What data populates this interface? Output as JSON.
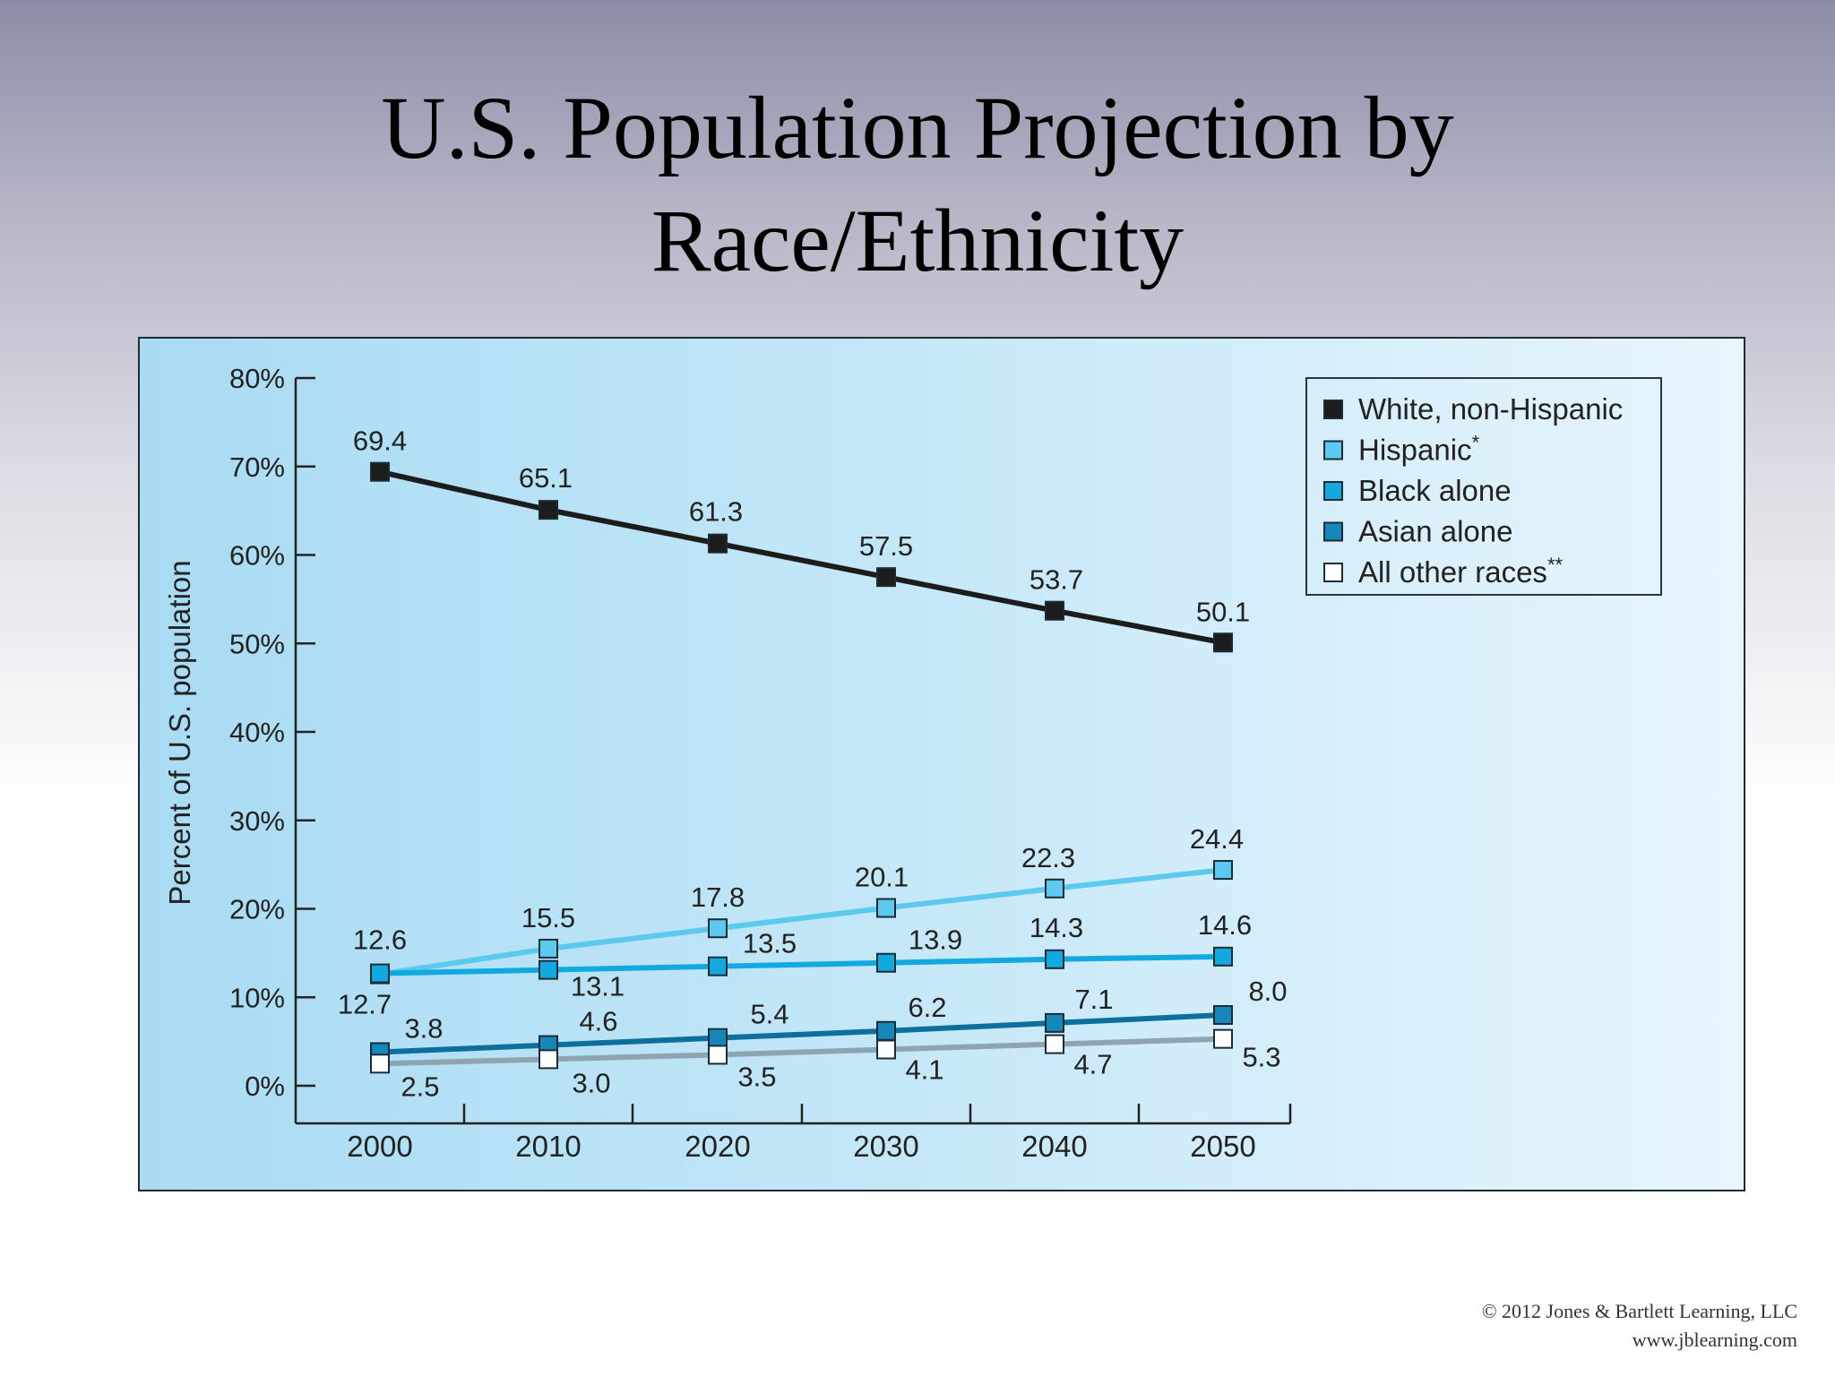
{
  "slide": {
    "title_line1": "U.S. Population Projection by",
    "title_line2": "Race/Ethnicity",
    "copyright_line1": "© 2012 Jones & Bartlett Learning, LLC",
    "copyright_line2": "www.jblearning.com"
  },
  "chart_data": {
    "type": "line",
    "title": "",
    "xlabel": "",
    "ylabel": "Percent of U.S. population",
    "x": [
      "2000",
      "2010",
      "2020",
      "2030",
      "2040",
      "2050"
    ],
    "ylim": [
      0,
      80
    ],
    "yticks": [
      "0%",
      "10%",
      "20%",
      "30%",
      "40%",
      "50%",
      "60%",
      "70%",
      "80%"
    ],
    "grid": false,
    "legend_position": "top-right",
    "series": [
      {
        "name": "White, non-Hispanic",
        "marker": "",
        "values": [
          69.4,
          65.1,
          61.3,
          57.5,
          53.7,
          50.1
        ],
        "labels": [
          "69.4",
          "65.1",
          "61.3",
          "57.5",
          "53.7",
          "50.1"
        ],
        "line_color": "#1c1c1c",
        "marker_color": "#1c1c1c"
      },
      {
        "name": "Hispanic",
        "marker": "*",
        "values": [
          12.6,
          15.5,
          17.8,
          20.1,
          22.3,
          24.4
        ],
        "labels": [
          "12.6",
          "15.5",
          "17.8",
          "20.1",
          "22.3",
          "24.4"
        ],
        "line_color": "#5ccaef",
        "marker_color": "#5ccaef"
      },
      {
        "name": "Black alone",
        "marker": "",
        "values": [
          12.7,
          13.1,
          13.5,
          13.9,
          14.3,
          14.6
        ],
        "labels": [
          "12.7",
          "13.1",
          "13.5",
          "13.9",
          "14.3",
          "14.6"
        ],
        "line_color": "#12a8e0",
        "marker_color": "#12a8e0"
      },
      {
        "name": "Asian alone",
        "marker": "",
        "values": [
          3.8,
          4.6,
          5.4,
          6.2,
          7.1,
          8.0
        ],
        "labels": [
          "3.8",
          "4.6",
          "5.4",
          "6.2",
          "7.1",
          "8.0"
        ],
        "line_color": "#0d6f9c",
        "marker_color": "#1587b8"
      },
      {
        "name": "All other races",
        "marker": "**",
        "values": [
          2.5,
          3.0,
          3.5,
          4.1,
          4.7,
          5.3
        ],
        "labels": [
          "2.5",
          "3.0",
          "3.5",
          "4.1",
          "4.7",
          "5.3"
        ],
        "line_color": "#8ea4b0",
        "marker_color": "#ffffff"
      }
    ]
  }
}
